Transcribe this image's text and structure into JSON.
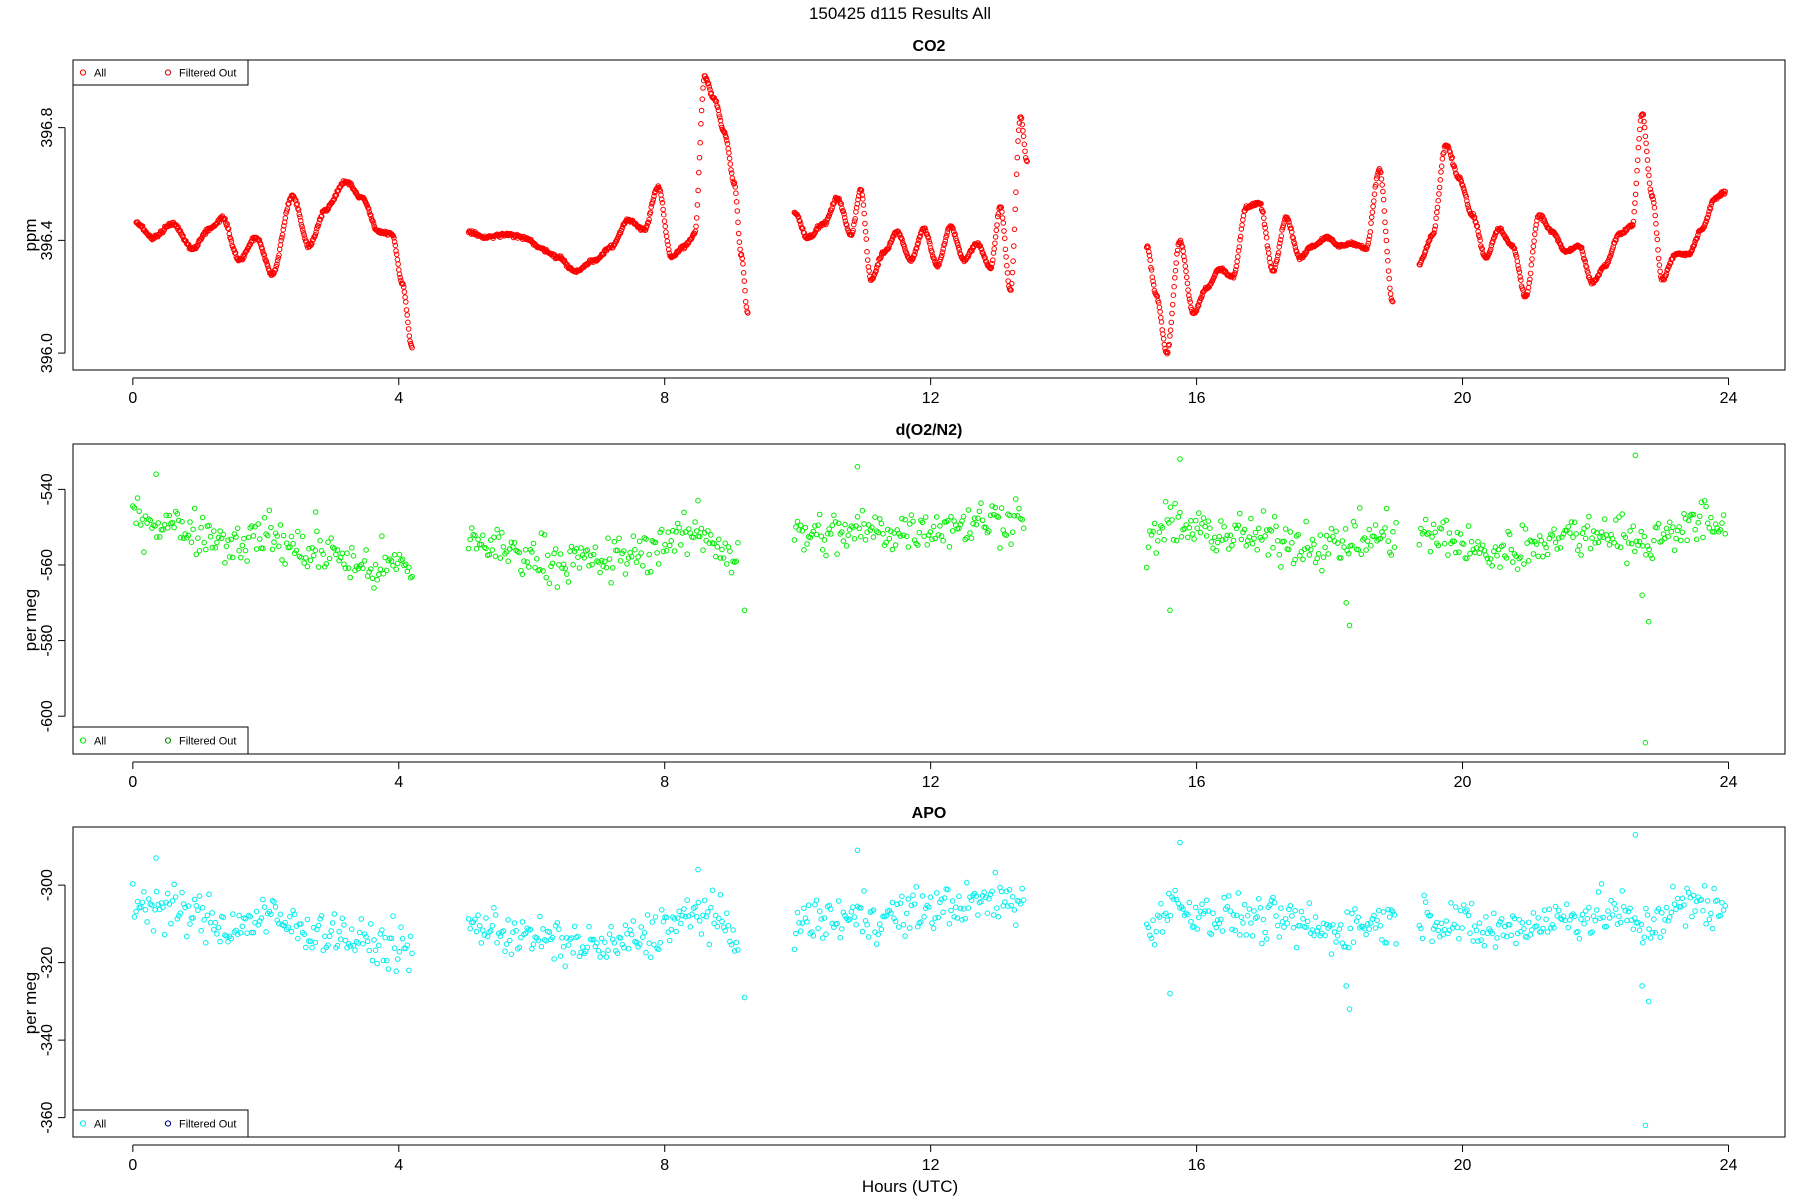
{
  "figure_title": "150425   d115   Results All",
  "xlabel": "Hours (UTC)",
  "chart_data": [
    {
      "type": "scatter",
      "title": "CO2",
      "ylabel": "ppm",
      "xlim": [
        -0.9,
        24.85
      ],
      "ylim": [
        395.94,
        397.04
      ],
      "x_ticks": [
        0,
        4,
        8,
        12,
        16,
        20,
        24
      ],
      "y_ticks": [
        396.0,
        396.4,
        396.8
      ],
      "y_tick_labels": [
        "396.0",
        "396.4",
        "396.8"
      ],
      "legend": {
        "placement": "top-left",
        "entries": [
          "All",
          "Filtered Out"
        ]
      },
      "colors": {
        "all": "#ff0000",
        "filtered": "#cc0000"
      },
      "segments": [
        {
          "x": [
            0.05,
            0.3,
            0.6,
            0.9,
            1.15,
            1.35,
            1.6,
            1.85,
            2.1,
            2.4,
            2.65,
            2.9,
            3.2,
            3.45,
            3.7,
            3.9,
            4.05,
            4.2
          ],
          "y": [
            396.46,
            396.41,
            396.46,
            396.37,
            396.44,
            396.48,
            396.33,
            396.41,
            396.28,
            396.56,
            396.38,
            396.51,
            396.61,
            396.55,
            396.43,
            396.42,
            396.25,
            396.02
          ]
        },
        {
          "x": [
            5.05,
            5.3,
            5.6,
            5.9,
            6.15,
            6.4,
            6.65,
            6.95,
            7.2,
            7.45,
            7.7,
            7.9,
            8.1,
            8.3,
            8.45,
            8.6,
            8.75,
            8.9,
            9.05,
            9.15,
            9.25
          ],
          "y": [
            396.43,
            396.41,
            396.42,
            396.41,
            396.37,
            396.34,
            396.29,
            396.33,
            396.38,
            396.47,
            396.44,
            396.59,
            396.34,
            396.38,
            396.42,
            396.98,
            396.9,
            396.78,
            396.6,
            396.35,
            396.14
          ]
        },
        {
          "x": [
            9.95,
            10.15,
            10.4,
            10.6,
            10.8,
            10.95,
            11.1,
            11.3,
            11.5,
            11.7,
            11.9,
            12.1,
            12.3,
            12.5,
            12.7,
            12.9,
            13.05,
            13.2,
            13.35,
            13.45
          ],
          "y": [
            396.5,
            396.41,
            396.46,
            396.55,
            396.42,
            396.58,
            396.26,
            396.36,
            396.43,
            396.33,
            396.44,
            396.31,
            396.45,
            396.33,
            396.39,
            396.3,
            396.52,
            396.22,
            396.84,
            396.68
          ]
        },
        {
          "x": [
            15.25,
            15.4,
            15.55,
            15.75,
            15.95,
            16.15,
            16.35,
            16.55,
            16.75,
            16.95,
            17.15,
            17.35,
            17.55,
            17.75,
            17.95,
            18.15,
            18.35,
            18.55,
            18.75,
            18.95
          ],
          "y": [
            396.38,
            396.2,
            396.0,
            396.4,
            396.14,
            396.23,
            396.3,
            396.27,
            396.52,
            396.53,
            396.29,
            396.48,
            396.34,
            396.38,
            396.41,
            396.38,
            396.39,
            396.37,
            396.65,
            396.18
          ]
        },
        {
          "x": [
            19.35,
            19.55,
            19.75,
            19.95,
            20.15,
            20.35,
            20.55,
            20.75,
            20.95,
            21.15,
            21.35,
            21.55,
            21.75,
            21.95,
            22.15,
            22.35,
            22.55,
            22.7,
            22.85,
            23.0,
            23.2,
            23.4,
            23.6,
            23.8,
            23.95
          ],
          "y": [
            396.32,
            396.42,
            396.74,
            396.62,
            396.49,
            396.34,
            396.44,
            396.38,
            396.2,
            396.49,
            396.43,
            396.36,
            396.38,
            396.25,
            396.31,
            396.42,
            396.45,
            396.85,
            396.56,
            396.26,
            396.35,
            396.35,
            396.44,
            396.55,
            396.57
          ]
        }
      ]
    },
    {
      "type": "scatter",
      "title": "d(O2/N2)",
      "ylabel": "per meg",
      "xlim": [
        -0.9,
        24.85
      ],
      "ylim": [
        -610,
        -528
      ],
      "x_ticks": [
        0,
        4,
        8,
        12,
        16,
        20,
        24
      ],
      "y_ticks": [
        -540,
        -560,
        -580,
        -600
      ],
      "y_tick_labels": [
        "-540",
        "-560",
        "-580",
        "-600"
      ],
      "legend": {
        "placement": "bottom-left",
        "entries": [
          "All",
          "Filtered Out"
        ]
      },
      "colors": {
        "all": "#00ee00",
        "filtered": "#008800"
      },
      "segments": [
        {
          "x": [
            0.0,
            0.5,
            1.0,
            1.5,
            2.0,
            2.5,
            3.0,
            3.5,
            4.0,
            4.2
          ],
          "y": [
            -547,
            -549,
            -551,
            -554,
            -552,
            -556,
            -557,
            -561,
            -560,
            -562
          ]
        },
        {
          "x": [
            5.05,
            5.6,
            6.1,
            6.6,
            7.1,
            7.6,
            8.1,
            8.6,
            9.1
          ],
          "y": [
            -553,
            -556,
            -558,
            -559,
            -559,
            -557,
            -553,
            -552,
            -558
          ]
        },
        {
          "x": [
            9.95,
            10.5,
            11.0,
            11.5,
            12.0,
            12.5,
            13.0,
            13.4
          ],
          "y": [
            -552,
            -552,
            -551,
            -551,
            -550,
            -549,
            -548,
            -547
          ]
        },
        {
          "x": [
            15.25,
            15.6,
            16.0,
            16.5,
            17.0,
            17.5,
            18.0,
            18.5,
            19.0
          ],
          "y": [
            -555,
            -549,
            -551,
            -552,
            -553,
            -554,
            -555,
            -553,
            -552
          ]
        },
        {
          "x": [
            19.35,
            19.8,
            20.3,
            20.8,
            21.3,
            21.8,
            22.3,
            22.7,
            23.2,
            23.6,
            23.95
          ],
          "y": [
            -552,
            -553,
            -557,
            -556,
            -553,
            -552,
            -551,
            -555,
            -550,
            -549,
            -550
          ]
        }
      ],
      "outliers": {
        "x": [
          0.35,
          2.75,
          8.5,
          9.2,
          10.9,
          15.6,
          15.75,
          18.3,
          18.25,
          22.6,
          22.8,
          22.75,
          22.7
        ],
        "y": [
          -536,
          -546,
          -543,
          -572,
          -534,
          -572,
          -532,
          -576,
          -570,
          -531,
          -575,
          -607,
          -568
        ]
      }
    },
    {
      "type": "scatter",
      "title": "APO",
      "ylabel": "per meg",
      "xlim": [
        -0.9,
        24.85
      ],
      "ylim": [
        -365,
        -285
      ],
      "x_ticks": [
        0,
        4,
        8,
        12,
        16,
        20,
        24
      ],
      "y_ticks": [
        -300,
        -320,
        -340,
        -360
      ],
      "y_tick_labels": [
        "-300",
        "-320",
        "-340",
        "-360"
      ],
      "legend": {
        "placement": "bottom-left",
        "entries": [
          "All",
          "Filtered Out"
        ]
      },
      "colors": {
        "all": "#00eeee",
        "filtered": "#000088"
      },
      "segments": [
        {
          "x": [
            0.0,
            0.5,
            1.0,
            1.5,
            2.0,
            2.5,
            3.0,
            3.5,
            4.0,
            4.2
          ],
          "y": [
            -304,
            -306,
            -308,
            -311,
            -308,
            -311,
            -312,
            -315,
            -316,
            -318
          ]
        },
        {
          "x": [
            5.05,
            5.6,
            6.1,
            6.6,
            7.1,
            7.6,
            8.1,
            8.6,
            9.1
          ],
          "y": [
            -310,
            -312,
            -314,
            -315,
            -316,
            -314,
            -310,
            -307,
            -314
          ]
        },
        {
          "x": [
            9.95,
            10.5,
            11.0,
            11.5,
            12.0,
            12.5,
            13.0,
            13.4
          ],
          "y": [
            -310,
            -309,
            -308,
            -308,
            -306,
            -305,
            -304,
            -304
          ]
        },
        {
          "x": [
            15.25,
            15.6,
            16.0,
            16.5,
            17.0,
            17.5,
            18.0,
            18.5,
            19.0
          ],
          "y": [
            -312,
            -305,
            -307,
            -308,
            -309,
            -310,
            -312,
            -310,
            -309
          ]
        },
        {
          "x": [
            19.35,
            19.8,
            20.3,
            20.8,
            21.3,
            21.8,
            22.3,
            22.7,
            23.2,
            23.6,
            23.95
          ],
          "y": [
            -308,
            -309,
            -312,
            -311,
            -309,
            -308,
            -307,
            -311,
            -306,
            -305,
            -305
          ]
        }
      ],
      "outliers": {
        "x": [
          0.35,
          8.5,
          9.2,
          10.9,
          15.6,
          15.75,
          18.3,
          18.25,
          22.6,
          22.8,
          22.75,
          22.7
        ],
        "y": [
          -293,
          -296,
          -329,
          -291,
          -328,
          -289,
          -332,
          -326,
          -287,
          -330,
          -362,
          -326
        ]
      }
    }
  ]
}
